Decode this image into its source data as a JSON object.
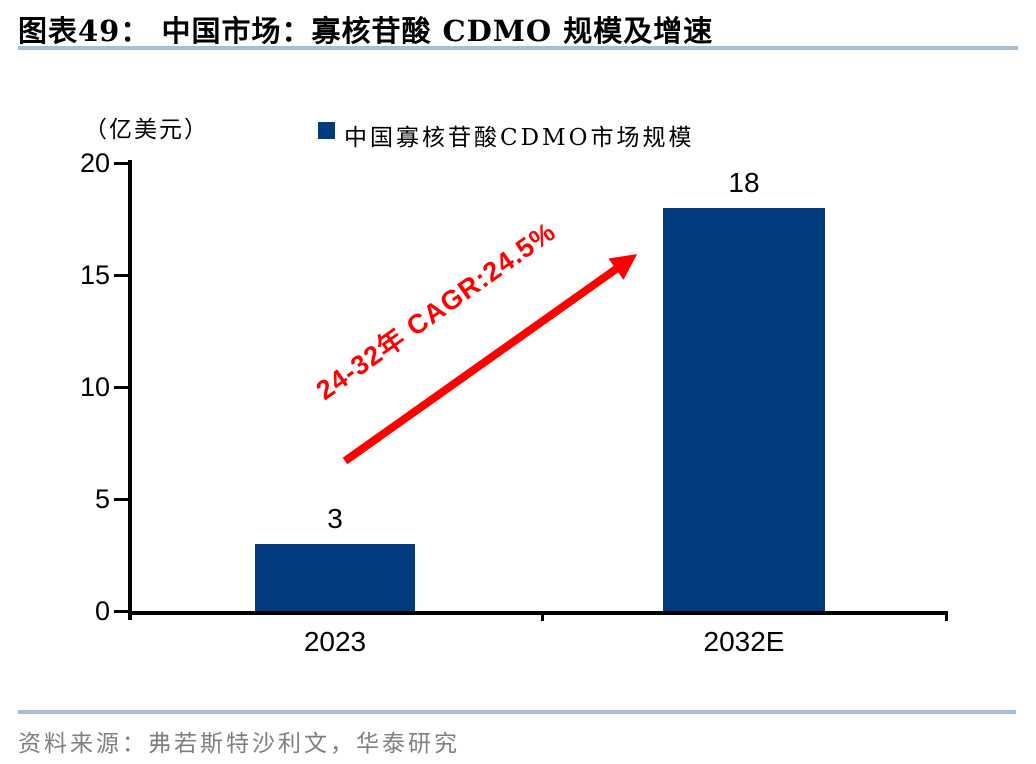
{
  "figure": {
    "title": "图表49：  中国市场：寡核苷酸 CDMO 规模及增速",
    "source": "资料来源：弗若斯特沙利文，华泰研究"
  },
  "chart_data": {
    "type": "bar",
    "title": "中国寡核苷酸CDMO市场规模",
    "unit_label": "（亿美元）",
    "categories": [
      "2023",
      "2032E"
    ],
    "values": [
      3,
      18
    ],
    "value_labels": [
      "3",
      "18"
    ],
    "series": [
      {
        "name": "中国寡核苷酸CDMO市场规模",
        "values": [
          3,
          18
        ]
      }
    ],
    "xlabel": "",
    "ylabel": "（亿美元）",
    "ylim": [
      0,
      20
    ],
    "yticks": [
      0,
      5,
      10,
      15,
      20
    ],
    "grid": false,
    "legend_position": "top-center",
    "annotation": "24-32年 CAGR:24.5%",
    "colors": {
      "bar": "#003C7E",
      "annotation": "#FF0000",
      "rule": "#A9BDD5",
      "axis": "#000000",
      "source_text": "#7F7F7F"
    }
  }
}
